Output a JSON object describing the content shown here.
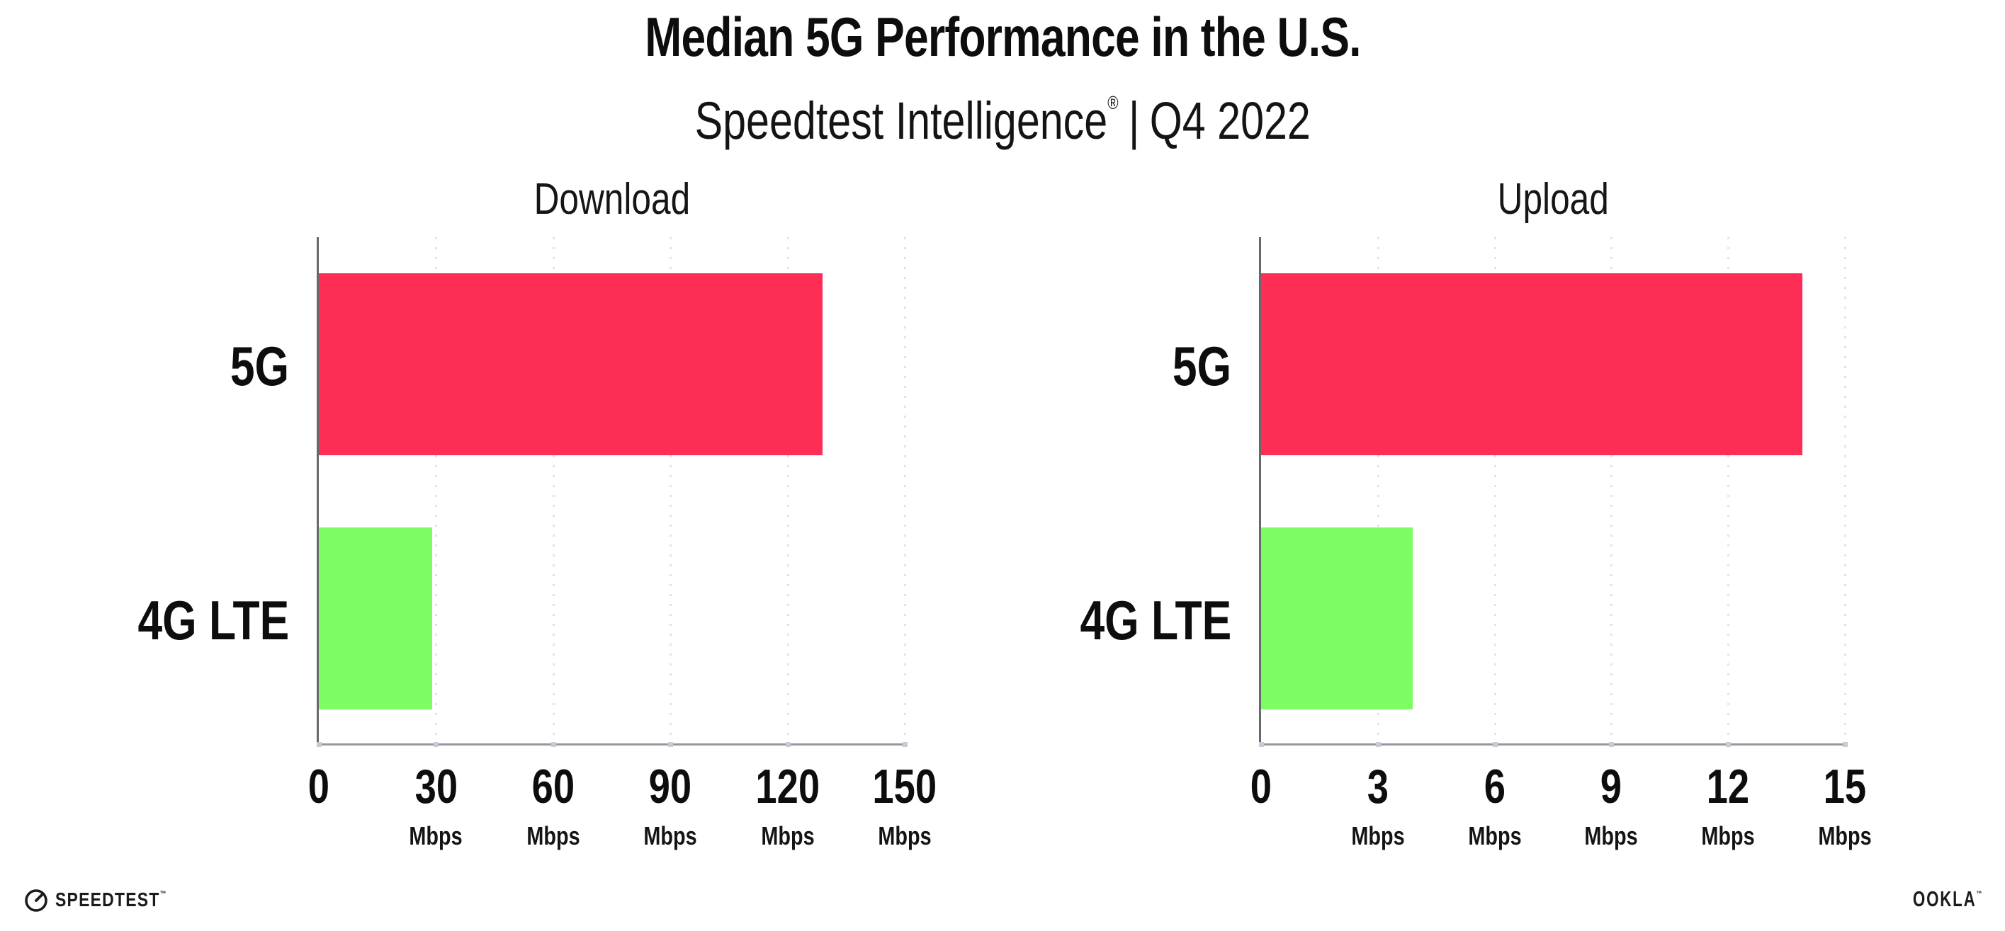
{
  "page": {
    "title": "Median 5G Performance in the U.S.",
    "subtitle_brand": "Speedtest Intelligence",
    "subtitle_reg_mark": "®",
    "subtitle_separator": "|",
    "subtitle_period": "Q4 2022"
  },
  "colors": {
    "bar_5g": "#FE2D55",
    "bar_4g_lte": "#7DFC64",
    "y_axis": "#67686c",
    "x_axis": "#97979d",
    "gridline_dot": "#e2e2eb",
    "text": "#111111"
  },
  "chart_data": [
    {
      "type": "bar",
      "orientation": "horizontal",
      "title": "Download",
      "categories": [
        "5G",
        "4G LTE"
      ],
      "values": [
        129,
        29
      ],
      "unit": "Mbps",
      "xlim": [
        0,
        150
      ],
      "xticks": [
        0,
        30,
        60,
        90,
        120,
        150
      ],
      "tick_unit_label": "Mbps",
      "grid": "vertical-dotted",
      "legend": "none",
      "series_colors": [
        "#FE2D55",
        "#7DFC64"
      ]
    },
    {
      "type": "bar",
      "orientation": "horizontal",
      "title": "Upload",
      "categories": [
        "5G",
        "4G LTE"
      ],
      "values": [
        13.9,
        3.9
      ],
      "unit": "Mbps",
      "xlim": [
        0,
        15
      ],
      "xticks": [
        0,
        3,
        6,
        9,
        12,
        15
      ],
      "tick_unit_label": "Mbps",
      "grid": "vertical-dotted",
      "legend": "none",
      "series_colors": [
        "#FE2D55",
        "#7DFC64"
      ]
    }
  ],
  "footer": {
    "speedtest_logo_text": "SPEEDTEST",
    "speedtest_trademark": "™",
    "ookla_logo_text": "OOKLA",
    "ookla_trademark": "™"
  }
}
